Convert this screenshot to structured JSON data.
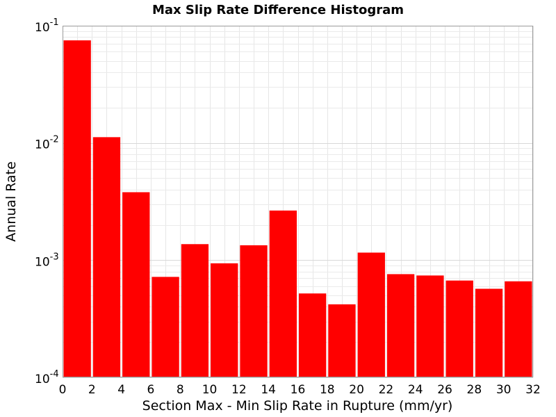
{
  "chart_data": {
    "type": "bar",
    "title": "Max Slip Rate Difference Histogram",
    "xlabel": "Section Max - Min Slip Rate in Rupture (mm/yr)",
    "ylabel": "Annual Rate",
    "xlim": [
      0,
      32
    ],
    "ylim": [
      0.0001,
      0.1
    ],
    "yscale": "log",
    "grid": true,
    "bar_width": 2,
    "bar_color": "#ff0000",
    "x_ticks": [
      "0",
      "2",
      "4",
      "6",
      "8",
      "10",
      "12",
      "14",
      "16",
      "18",
      "20",
      "22",
      "24",
      "26",
      "28",
      "30",
      "32"
    ],
    "y_ticks": [
      {
        "base": "10",
        "exp": "-4",
        "value": 0.0001
      },
      {
        "base": "10",
        "exp": "-3",
        "value": 0.001
      },
      {
        "base": "10",
        "exp": "-2",
        "value": 0.01
      },
      {
        "base": "10",
        "exp": "-1",
        "value": 0.1
      }
    ],
    "x": [
      1,
      3,
      5,
      7,
      9,
      11,
      13,
      15,
      17,
      19,
      21,
      23,
      25,
      27,
      29,
      31
    ],
    "values": [
      0.075,
      0.0112,
      0.0038,
      0.00072,
      0.00137,
      0.00094,
      0.00134,
      0.00265,
      0.00052,
      0.00042,
      0.00116,
      0.00076,
      0.00074,
      0.00067,
      0.00057,
      0.00066
    ]
  }
}
